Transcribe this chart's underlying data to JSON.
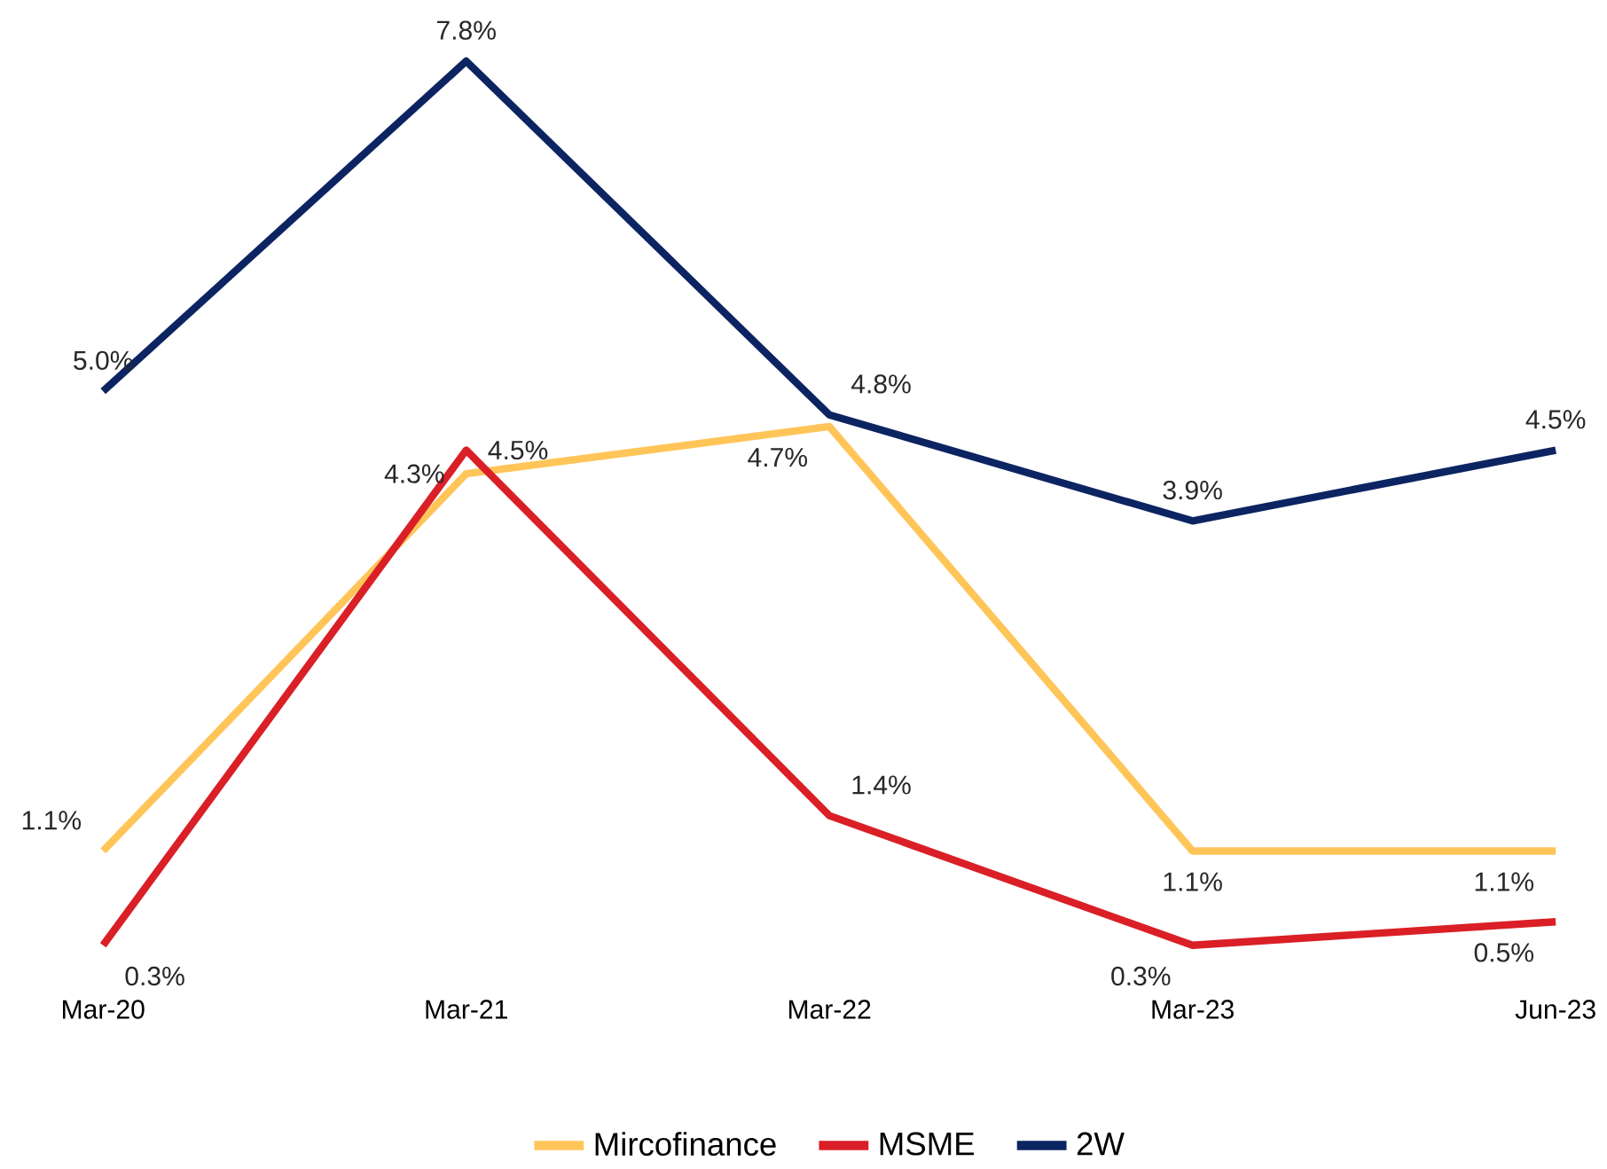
{
  "chart_data": {
    "type": "line",
    "categories": [
      "Mar-20",
      "Mar-21",
      "Mar-22",
      "Mar-23",
      "Jun-23"
    ],
    "tick_labels": "x",
    "legend": "bottom",
    "grid": false,
    "marker": "none",
    "line_style": "solid",
    "series": [
      {
        "name": "Mircofinance",
        "color": "#ffc559",
        "values": [
          1.1,
          4.3,
          4.7,
          1.1,
          1.1
        ],
        "value_labels": [
          "1.1%",
          "4.3%",
          "4.7%",
          "1.1%",
          "1.1%"
        ]
      },
      {
        "name": "MSME",
        "color": "#da1f26",
        "values": [
          0.3,
          4.5,
          1.4,
          0.3,
          0.5
        ],
        "value_labels": [
          "0.3%",
          "4.5%",
          "1.4%",
          "0.3%",
          "0.5%"
        ]
      },
      {
        "name": "2W",
        "color": "#0c2461",
        "values": [
          5.0,
          7.8,
          4.8,
          3.9,
          4.5
        ],
        "value_labels": [
          "5.0%",
          "7.8%",
          "4.8%",
          "3.9%",
          "4.5%"
        ]
      }
    ]
  }
}
